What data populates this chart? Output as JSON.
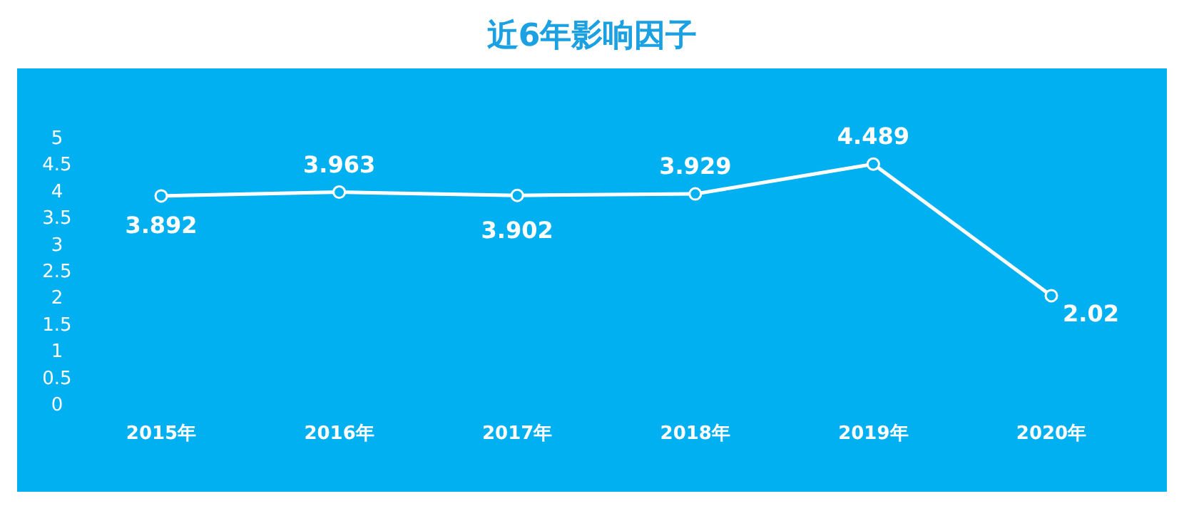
{
  "chart_data": {
    "type": "line",
    "title": "近6年影响因子",
    "categories": [
      "2015年",
      "2016年",
      "2017年",
      "2018年",
      "2019年",
      "2020年"
    ],
    "values": [
      3.892,
      3.963,
      3.902,
      3.929,
      4.489,
      2.02
    ],
    "color": "#ffffff",
    "ylim": [
      0,
      5
    ],
    "yticks": [
      0,
      0.5,
      1,
      1.5,
      2,
      2.5,
      3,
      3.5,
      4,
      4.5,
      5
    ],
    "data_labels": true,
    "marker": "circle",
    "line_style": "solid",
    "grid": false
  }
}
